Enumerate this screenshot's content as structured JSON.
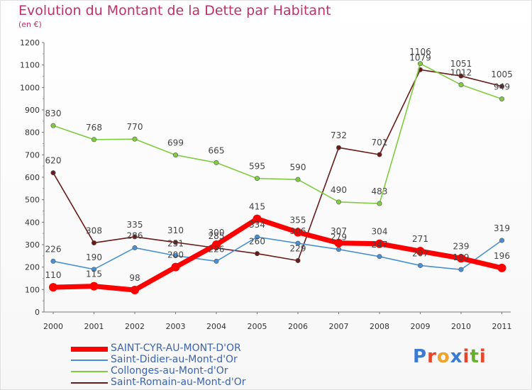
{
  "title": "Evolution du Montant de la Dette par Habitant",
  "unit": "(en €)",
  "logo": {
    "text": "Proxiti",
    "colors": [
      "#3b7bd6",
      "#e9452a",
      "#f0a32a",
      "#3b7bd6",
      "#e9452a",
      "#66b02a",
      "#e9452a"
    ]
  },
  "chart_data": {
    "type": "line",
    "categories": [
      "2000",
      "2001",
      "2002",
      "2003",
      "2004",
      "2005",
      "2006",
      "2007",
      "2008",
      "2009",
      "2010",
      "2011"
    ],
    "ylim": [
      0,
      1200
    ],
    "yticks": [
      0,
      100,
      200,
      300,
      400,
      500,
      600,
      700,
      800,
      900,
      1000,
      1100,
      1200
    ],
    "grid": false,
    "legend_position": "bottom",
    "series": [
      {
        "name": "SAINT-CYR-AU-MONT-D'OR",
        "color": "#ff0000",
        "values": [
          110,
          115,
          98,
          200,
          300,
          415,
          355,
          307,
          304,
          271,
          239,
          196
        ]
      },
      {
        "name": "Saint-Didier-au-Mont-d'Or",
        "color": "#4a90d0",
        "values": [
          226,
          190,
          286,
          251,
          226,
          334,
          306,
          279,
          247,
          207,
          189,
          319
        ]
      },
      {
        "name": "Collonges-au-Mont-d'Or",
        "color": "#80cc40",
        "values": [
          830,
          768,
          770,
          699,
          665,
          595,
          590,
          490,
          483,
          1106,
          1012,
          949
        ]
      },
      {
        "name": "Saint-Romain-au-Mont-d'Or",
        "color": "#6b1a1a",
        "values": [
          620,
          308,
          335,
          310,
          285,
          260,
          229,
          732,
          701,
          1079,
          1051,
          1005
        ]
      }
    ]
  }
}
